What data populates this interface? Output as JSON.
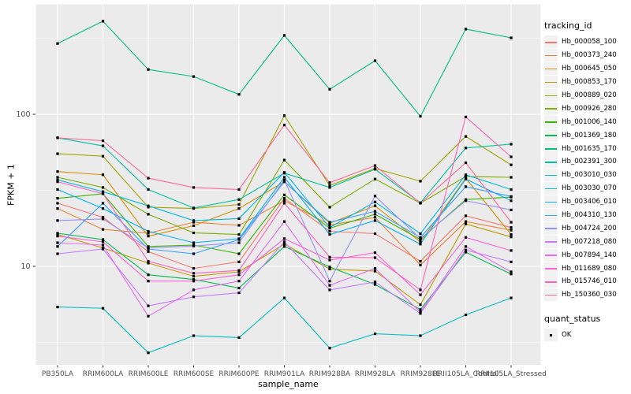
{
  "axes": {
    "x_title": "sample_name",
    "y_title": "FPKM + 1"
  },
  "legend": {
    "tracking_title": "tracking_id",
    "quant_title": "quant_status",
    "quant_items": [
      {
        "label": "OK"
      }
    ]
  },
  "chart_data": {
    "type": "line",
    "xlabel": "sample_name",
    "ylabel": "FPKM + 1",
    "y_scale": "log10",
    "ylim": [
      2.2,
      520
    ],
    "y_ticks": [
      {
        "value": 100,
        "label": "100"
      },
      {
        "value": 10,
        "label": "10"
      }
    ],
    "y_minor_ticks": [
      3.162,
      31.62,
      316.2
    ],
    "grid": "white-on-gray",
    "legend_position": "right",
    "marker": "black-square",
    "panel_bg": "#EBEBEB",
    "gridline_color": "#FFFFFF",
    "tick_color": "#333333",
    "tick_label_color": "#4D4D4D",
    "categories": [
      "PB350LA",
      "RRIM600LA",
      "RRIM600LE",
      "RRIM600SE",
      "RRIM600PE",
      "RRIM901LA",
      "RRIM928BA",
      "RRIM928LA",
      "RRIM928LE",
      "RRII105LA_Control",
      "RRII105LA_Stressed"
    ],
    "series": [
      {
        "name": "Hb_000058_100",
        "color": "#F8766D",
        "values": [
          26,
          21,
          12.5,
          9.7,
          10.7,
          28,
          17,
          16.4,
          10.8,
          21.5,
          18
        ]
      },
      {
        "name": "Hb_000373_240",
        "color": "#EA8331",
        "values": [
          24,
          17.5,
          16.5,
          19.5,
          18.6,
          27,
          18.7,
          21,
          10.2,
          19.7,
          17.3
        ]
      },
      {
        "name": "Hb_000645_050",
        "color": "#D89000",
        "values": [
          42,
          40,
          15.8,
          18.5,
          24,
          36,
          19.2,
          25,
          14.5,
          38,
          16.2
        ]
      },
      {
        "name": "Hb_000853_170",
        "color": "#C09B00",
        "values": [
          16.2,
          13.2,
          10.5,
          8.6,
          9.2,
          14,
          9.6,
          9.3,
          5.6,
          19,
          15.6
        ]
      },
      {
        "name": "Hb_000889_020",
        "color": "#A3A500",
        "values": [
          55,
          53,
          24.5,
          24,
          25.5,
          98,
          34,
          44,
          36.3,
          71.5,
          46.5
        ]
      },
      {
        "name": "Hb_000926_280",
        "color": "#7CAE00",
        "values": [
          38.5,
          33,
          22,
          16.6,
          16.2,
          50,
          24.5,
          37.5,
          26,
          39,
          38.5
        ]
      },
      {
        "name": "Hb_001006_140",
        "color": "#39B600",
        "values": [
          28,
          30,
          13.5,
          13.8,
          12.1,
          29.5,
          17.8,
          22,
          15,
          27.5,
          28.5
        ]
      },
      {
        "name": "Hb_001369_180",
        "color": "#00BB4E",
        "values": [
          16.5,
          15,
          8.8,
          8.2,
          7.2,
          13.5,
          9.9,
          7.6,
          5.2,
          12.4,
          8.9
        ]
      },
      {
        "name": "Hb_001635_170",
        "color": "#00BF7D",
        "values": [
          292,
          409,
          197,
          177,
          135,
          330,
          146,
          225,
          97,
          363,
          318
        ]
      },
      {
        "name": "Hb_002391_300",
        "color": "#00C1A3",
        "values": [
          70,
          62,
          32,
          24.2,
          27.5,
          41,
          33,
          43.5,
          26.2,
          60,
          63.6
        ]
      },
      {
        "name": "Hb_003010_030",
        "color": "#00BFC4",
        "values": [
          5.4,
          5.3,
          2.7,
          3.5,
          3.4,
          6.2,
          2.9,
          3.6,
          3.5,
          4.8,
          6.2
        ]
      },
      {
        "name": "Hb_003030_070",
        "color": "#00BAE0",
        "values": [
          37,
          31,
          25,
          20,
          20.6,
          41.5,
          18,
          26.5,
          16.4,
          40,
          32
        ]
      },
      {
        "name": "Hb_003406_010",
        "color": "#00B0F6",
        "values": [
          32,
          24,
          17,
          14.3,
          15.2,
          38.5,
          16.2,
          20,
          14,
          37.5,
          27
        ]
      },
      {
        "name": "Hb_004310_130",
        "color": "#35A2FF",
        "values": [
          13.5,
          26,
          13,
          12.1,
          15,
          36,
          19.5,
          23,
          15.5,
          33.4,
          28.8
        ]
      },
      {
        "name": "Hb_004724_200",
        "color": "#9590FF",
        "values": [
          20,
          20.5,
          13.2,
          13.6,
          14.3,
          37,
          8,
          29,
          15.2,
          27,
          23.5
        ]
      },
      {
        "name": "Hb_007218_080",
        "color": "#C77CFF",
        "values": [
          12.1,
          13,
          5.5,
          6.3,
          6.7,
          14.5,
          7,
          7.9,
          4.9,
          12.8,
          10.7
        ]
      },
      {
        "name": "Hb_007894_140",
        "color": "#E76BF3",
        "values": [
          14.3,
          13.8,
          4.7,
          7,
          8,
          19.7,
          7.5,
          9.7,
          5,
          13.5,
          9.2
        ]
      },
      {
        "name": "Hb_011689_080",
        "color": "#FA62DB",
        "values": [
          15.8,
          14.5,
          8,
          8,
          8.8,
          15.2,
          11,
          12.3,
          6.5,
          15.5,
          12.7
        ]
      },
      {
        "name": "Hb_015746_010",
        "color": "#FF62BC",
        "values": [
          36,
          30,
          10.8,
          9,
          9.4,
          26,
          11.5,
          11.4,
          7,
          96,
          52.5
        ]
      },
      {
        "name": "Hb_150360_030",
        "color": "#FF6A98",
        "values": [
          70,
          67,
          38,
          33,
          32,
          85,
          35.5,
          46,
          26,
          48,
          19.5
        ]
      }
    ]
  }
}
